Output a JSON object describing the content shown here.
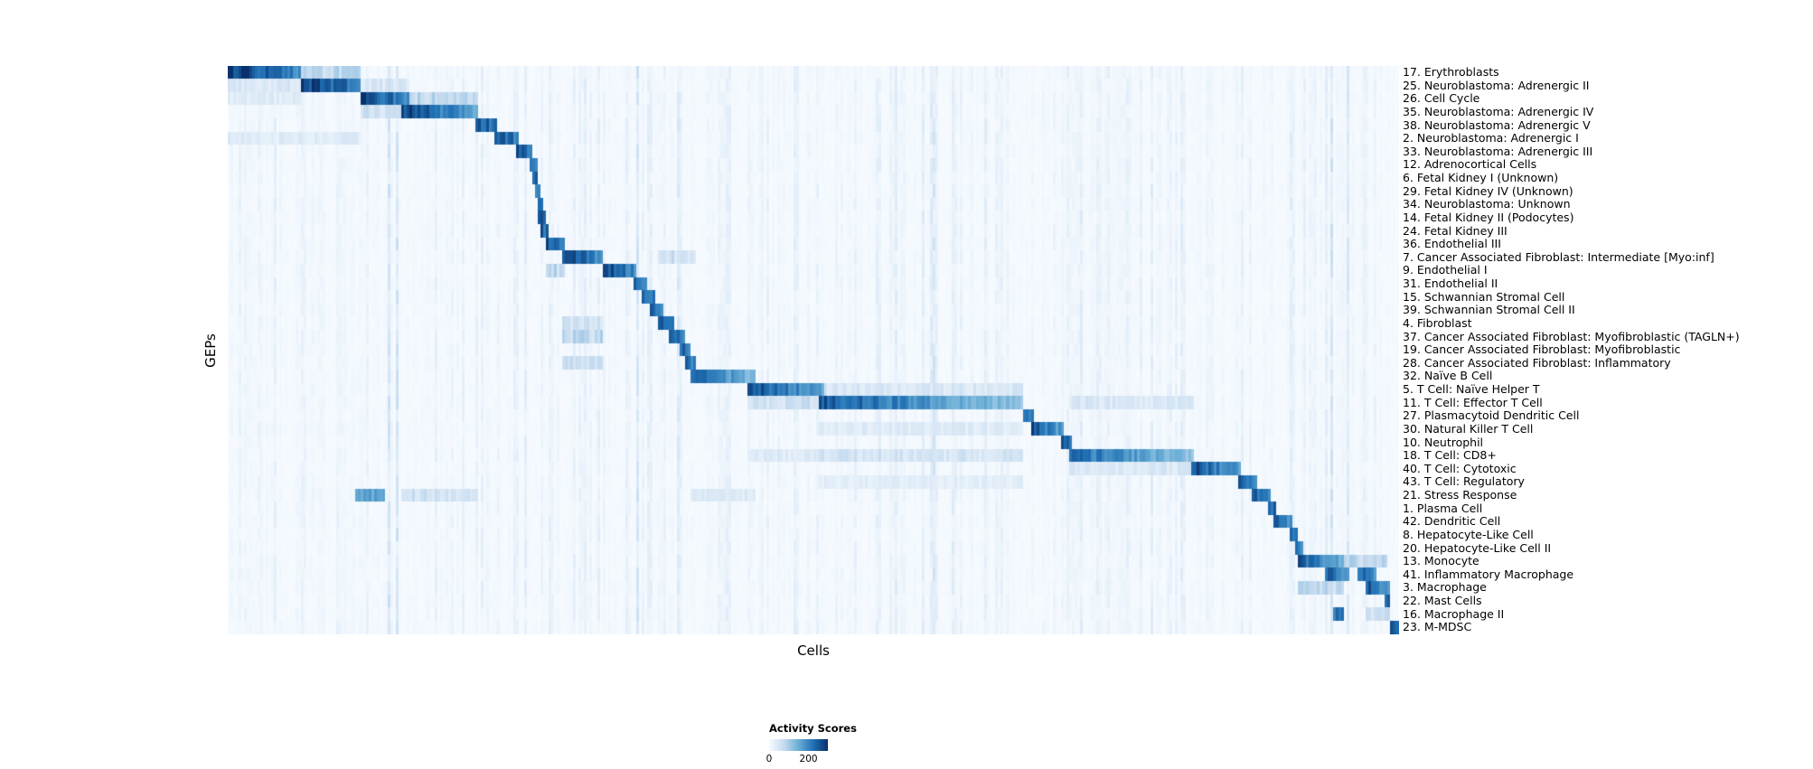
{
  "chart_data": {
    "type": "heatmap",
    "xlabel": "Cells",
    "ylabel": "GEPs",
    "colormap": [
      "#f7fbff",
      "#c6dbef",
      "#6baed6",
      "#2171b5",
      "#08306b"
    ],
    "legend": {
      "title": "Activity Scores",
      "ticks": [
        {
          "label": "0",
          "pos": 0
        },
        {
          "label": "200",
          "pos": 0.67
        }
      ]
    },
    "block_format": "[x_start_frac, x_end_frac, peak_intensity_0to1, fade_along_block]",
    "extra_format": "[x_start_frac, x_end_frac, intensity_0to1]",
    "rows": [
      {
        "label": "17. Erythroblasts",
        "blocks": [
          [
            0.0,
            0.062,
            1.0,
            0.35
          ]
        ],
        "extras": [
          [
            0.062,
            0.115,
            0.25
          ]
        ]
      },
      {
        "label": "25. Neuroblastoma: Adrenergic II",
        "blocks": [
          [
            0.062,
            0.115,
            0.95,
            0.3
          ]
        ],
        "extras": [
          [
            0.0,
            0.062,
            0.15
          ],
          [
            0.115,
            0.155,
            0.15
          ]
        ]
      },
      {
        "label": "26. Cell Cycle",
        "blocks": [
          [
            0.115,
            0.155,
            0.92,
            0.3
          ]
        ],
        "extras": [
          [
            0.155,
            0.215,
            0.25
          ],
          [
            0.0,
            0.062,
            0.12
          ]
        ]
      },
      {
        "label": "35. Neuroblastoma: Adrenergic IV",
        "blocks": [
          [
            0.15,
            0.214,
            0.92,
            0.45
          ]
        ],
        "extras": [
          [
            0.115,
            0.15,
            0.2
          ]
        ]
      },
      {
        "label": "38. Neuroblastoma: Adrenergic V",
        "blocks": [
          [
            0.212,
            0.231,
            0.88,
            0.2
          ]
        ],
        "extras": []
      },
      {
        "label": "2. Neuroblastoma: Adrenergic I",
        "blocks": [
          [
            0.227,
            0.249,
            0.92,
            0.25
          ]
        ],
        "extras": [
          [
            0.0,
            0.115,
            0.12
          ]
        ]
      },
      {
        "label": "33. Neuroblastoma: Adrenergic III",
        "blocks": [
          [
            0.247,
            0.261,
            0.88,
            0.2
          ]
        ],
        "extras": []
      },
      {
        "label": "12. Adrenocortical Cells",
        "blocks": [
          [
            0.258,
            0.264,
            0.85,
            0.1
          ]
        ],
        "extras": []
      },
      {
        "label": "6. Fetal Kidney I (Unknown)",
        "blocks": [
          [
            0.26,
            0.266,
            0.82,
            0.1
          ]
        ],
        "extras": []
      },
      {
        "label": "29. Fetal Kidney IV (Unknown)",
        "blocks": [
          [
            0.262,
            0.268,
            0.78,
            0.1
          ]
        ],
        "extras": []
      },
      {
        "label": "34. Neuroblastoma: Unknown",
        "blocks": [
          [
            0.264,
            0.27,
            0.78,
            0.1
          ]
        ],
        "extras": []
      },
      {
        "label": "14. Fetal Kidney II (Podocytes)",
        "blocks": [
          [
            0.266,
            0.272,
            0.82,
            0.1
          ]
        ],
        "extras": []
      },
      {
        "label": "24. Fetal Kidney III",
        "blocks": [
          [
            0.268,
            0.275,
            0.82,
            0.1
          ]
        ],
        "extras": []
      },
      {
        "label": "36. Endothelial III",
        "blocks": [
          [
            0.272,
            0.289,
            0.88,
            0.25
          ]
        ],
        "extras": []
      },
      {
        "label": "7. Cancer Associated Fibroblast: Intermediate [Myo:inf]",
        "blocks": [
          [
            0.287,
            0.322,
            0.92,
            0.35
          ]
        ],
        "extras": [
          [
            0.367,
            0.399,
            0.2
          ]
        ]
      },
      {
        "label": "9. Endothelial I",
        "blocks": [
          [
            0.32,
            0.348,
            0.92,
            0.3
          ]
        ],
        "extras": [
          [
            0.272,
            0.289,
            0.25
          ]
        ]
      },
      {
        "label": "31. Endothelial II",
        "blocks": [
          [
            0.346,
            0.358,
            0.85,
            0.2
          ]
        ],
        "extras": []
      },
      {
        "label": "15. Schwannian Stromal Cell",
        "blocks": [
          [
            0.354,
            0.366,
            0.85,
            0.2
          ]
        ],
        "extras": []
      },
      {
        "label": "39. Schwannian Stromal Cell II",
        "blocks": [
          [
            0.361,
            0.372,
            0.8,
            0.2
          ]
        ],
        "extras": []
      },
      {
        "label": "4. Fibroblast",
        "blocks": [
          [
            0.367,
            0.381,
            0.85,
            0.2
          ]
        ],
        "extras": [
          [
            0.287,
            0.322,
            0.2
          ]
        ]
      },
      {
        "label": "37. Cancer Associated Fibroblast: Myofibroblastic (TAGLN+)",
        "blocks": [
          [
            0.376,
            0.39,
            0.85,
            0.2
          ]
        ],
        "extras": [
          [
            0.287,
            0.322,
            0.25
          ]
        ]
      },
      {
        "label": "19. Cancer Associated Fibroblast: Myofibroblastic",
        "blocks": [
          [
            0.385,
            0.395,
            0.82,
            0.2
          ]
        ],
        "extras": []
      },
      {
        "label": "28. Cancer Associated Fibroblast: Inflammatory",
        "blocks": [
          [
            0.39,
            0.4,
            0.82,
            0.2
          ]
        ],
        "extras": [
          [
            0.287,
            0.322,
            0.2
          ]
        ]
      },
      {
        "label": "32. Naïve B Cell",
        "blocks": [
          [
            0.396,
            0.452,
            0.82,
            0.5
          ]
        ],
        "extras": []
      },
      {
        "label": "5. T Cell: Naïve Helper T",
        "blocks": [
          [
            0.445,
            0.509,
            0.92,
            0.45
          ]
        ],
        "extras": [
          [
            0.509,
            0.68,
            0.15
          ]
        ]
      },
      {
        "label": "11. T Cell: Effector T Cell",
        "blocks": [
          [
            0.505,
            0.68,
            0.85,
            0.55
          ]
        ],
        "extras": [
          [
            0.445,
            0.505,
            0.2
          ],
          [
            0.718,
            0.826,
            0.15
          ]
        ]
      },
      {
        "label": "27. Plasmacytoid Dendritic Cell",
        "blocks": [
          [
            0.678,
            0.688,
            0.85,
            0.15
          ]
        ],
        "extras": []
      },
      {
        "label": "30. Natural Killer T Cell",
        "blocks": [
          [
            0.686,
            0.715,
            0.88,
            0.4
          ]
        ],
        "extras": [
          [
            0.505,
            0.68,
            0.12
          ]
        ]
      },
      {
        "label": "10. Neutrophil",
        "blocks": [
          [
            0.712,
            0.72,
            0.82,
            0.15
          ]
        ],
        "extras": []
      },
      {
        "label": "18. T Cell: CD8+",
        "blocks": [
          [
            0.718,
            0.826,
            0.78,
            0.5
          ]
        ],
        "extras": [
          [
            0.505,
            0.68,
            0.18
          ],
          [
            0.445,
            0.505,
            0.12
          ]
        ]
      },
      {
        "label": "40. T Cell: Cytotoxic",
        "blocks": [
          [
            0.824,
            0.866,
            0.88,
            0.4
          ]
        ],
        "extras": [
          [
            0.718,
            0.824,
            0.15
          ]
        ]
      },
      {
        "label": "43. T Cell: Regulatory",
        "blocks": [
          [
            0.862,
            0.878,
            0.82,
            0.25
          ]
        ],
        "extras": [
          [
            0.505,
            0.68,
            0.1
          ]
        ]
      },
      {
        "label": "21. Stress Response",
        "blocks": [
          [
            0.875,
            0.891,
            0.82,
            0.25
          ],
          [
            0.11,
            0.136,
            0.6,
            0.2
          ]
        ],
        "extras": [
          [
            0.15,
            0.214,
            0.2
          ],
          [
            0.396,
            0.452,
            0.12
          ]
        ]
      },
      {
        "label": "1. Plasma Cell",
        "blocks": [
          [
            0.888,
            0.896,
            0.85,
            0.15
          ]
        ],
        "extras": []
      },
      {
        "label": "42. Dendritic Cell",
        "blocks": [
          [
            0.893,
            0.91,
            0.82,
            0.25
          ]
        ],
        "extras": []
      },
      {
        "label": "8. Hepatocyte-Like Cell",
        "blocks": [
          [
            0.907,
            0.914,
            0.82,
            0.15
          ]
        ],
        "extras": []
      },
      {
        "label": "20. Hepatocyte-Like Cell II",
        "blocks": [
          [
            0.911,
            0.918,
            0.78,
            0.15
          ]
        ],
        "extras": []
      },
      {
        "label": "13. Monocyte",
        "blocks": [
          [
            0.915,
            0.953,
            0.85,
            0.45
          ]
        ],
        "extras": [
          [
            0.953,
            0.99,
            0.25
          ]
        ]
      },
      {
        "label": "41. Inflammatory Macrophage",
        "blocks": [
          [
            0.937,
            0.959,
            0.82,
            0.3
          ],
          [
            0.965,
            0.982,
            0.8,
            0.25
          ]
        ],
        "extras": []
      },
      {
        "label": "3. Macrophage",
        "blocks": [
          [
            0.971,
            0.992,
            0.85,
            0.3
          ]
        ],
        "extras": [
          [
            0.915,
            0.953,
            0.25
          ]
        ]
      },
      {
        "label": "22. Mast Cells",
        "blocks": [
          [
            0.989,
            0.994,
            0.8,
            0.1
          ]
        ],
        "extras": []
      },
      {
        "label": "16. Macrophage II",
        "blocks": [
          [
            0.945,
            0.953,
            0.78,
            0.1
          ]
        ],
        "extras": [
          [
            0.971,
            0.992,
            0.2
          ]
        ]
      },
      {
        "label": "23. M-MDSC",
        "blocks": [
          [
            0.994,
            1.0,
            0.85,
            0.1
          ]
        ],
        "extras": []
      }
    ]
  }
}
